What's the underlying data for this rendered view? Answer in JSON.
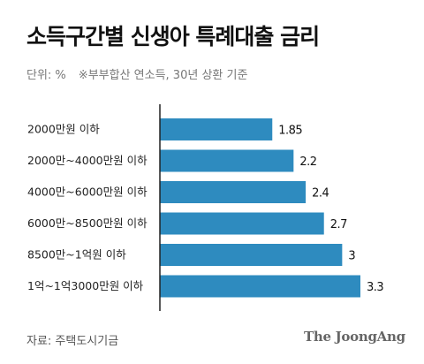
{
  "header": {
    "title": "소득구간별 신생아 특례대출 금리",
    "unit": "단위: %",
    "note": "※부부합산 연소득, 30년 상환 기준"
  },
  "footer": {
    "source": "자료: 주택도시기금",
    "brand": "The JoongAng"
  },
  "colors": {
    "bar": "#2e8bbf",
    "axis": "#222222"
  },
  "chart_data": {
    "type": "bar",
    "orientation": "horizontal",
    "categories": [
      "2000만원 이하",
      "2000만~4000만원 이하",
      "4000만~6000만원 이하",
      "6000만~8500만원 이하",
      "8500만~1억원 이하",
      "1억~1억3000만원 이하"
    ],
    "values": [
      1.85,
      2.2,
      2.4,
      2.7,
      3,
      3.3
    ],
    "value_labels": [
      "1.85",
      "2.2",
      "2.4",
      "2.7",
      "3",
      "3.3"
    ],
    "xlim": [
      0,
      3.3
    ],
    "grid": false
  }
}
